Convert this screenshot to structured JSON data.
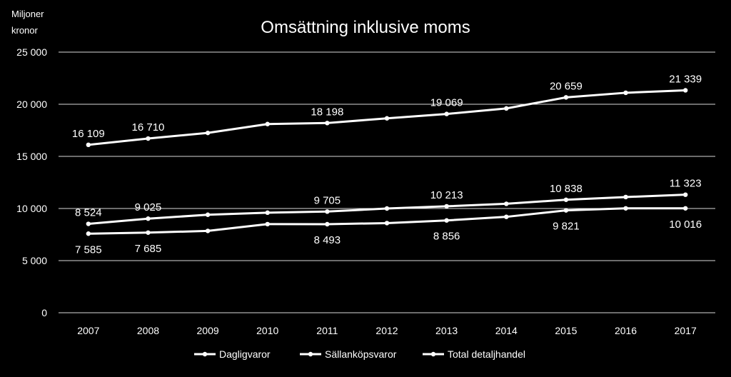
{
  "chart_data": {
    "type": "line",
    "title": "Omsättning inklusive moms",
    "ylabel_lines": [
      "Miljoner",
      "kronor"
    ],
    "xlabel": "",
    "ylim": [
      0,
      25000
    ],
    "yticks": [
      0,
      5000,
      10000,
      15000,
      20000,
      25000
    ],
    "ytick_labels": [
      "0",
      "5 000",
      "10 000",
      "15 000",
      "20 000",
      "25 000"
    ],
    "grid": true,
    "legend_position": "bottom",
    "categories": [
      "2007",
      "2008",
      "2009",
      "2010",
      "2011",
      "2012",
      "2013",
      "2014",
      "2015",
      "2016",
      "2017"
    ],
    "series": [
      {
        "name": "Dagligvaror",
        "values": [
          7585,
          7685,
          7850,
          8500,
          8493,
          8600,
          8856,
          9200,
          9821,
          10016,
          10016
        ],
        "data_labels": [
          {
            "index": 0,
            "text": "7 585"
          },
          {
            "index": 1,
            "text": "7 685"
          },
          {
            "index": 4,
            "text": "8 493"
          },
          {
            "index": 6,
            "text": "8 856"
          },
          {
            "index": 8,
            "text": "9 821"
          },
          {
            "index": 10,
            "text": "10 016"
          }
        ],
        "label_side": "below"
      },
      {
        "name": "Sällanköpsvaror",
        "values": [
          8524,
          9025,
          9400,
          9600,
          9705,
          10000,
          10213,
          10450,
          10838,
          11100,
          11323
        ],
        "data_labels": [
          {
            "index": 0,
            "text": "8 524"
          },
          {
            "index": 1,
            "text": "9 025"
          },
          {
            "index": 4,
            "text": "9 705"
          },
          {
            "index": 6,
            "text": "10 213"
          },
          {
            "index": 8,
            "text": "10 838"
          },
          {
            "index": 10,
            "text": "11 323"
          }
        ],
        "label_side": "above"
      },
      {
        "name": "Total detaljhandel",
        "values": [
          16109,
          16710,
          17250,
          18100,
          18198,
          18650,
          19069,
          19600,
          20659,
          21100,
          21339
        ],
        "data_labels": [
          {
            "index": 0,
            "text": "16 109"
          },
          {
            "index": 1,
            "text": "16 710"
          },
          {
            "index": 4,
            "text": "18 198"
          },
          {
            "index": 6,
            "text": "19 069"
          },
          {
            "index": 8,
            "text": "20 659"
          },
          {
            "index": 10,
            "text": "21 339"
          }
        ],
        "label_side": "above"
      }
    ],
    "colors": {
      "background": "#000000",
      "line": "#ffffff",
      "grid": "#d9d9d9",
      "text": "#ffffff"
    }
  }
}
